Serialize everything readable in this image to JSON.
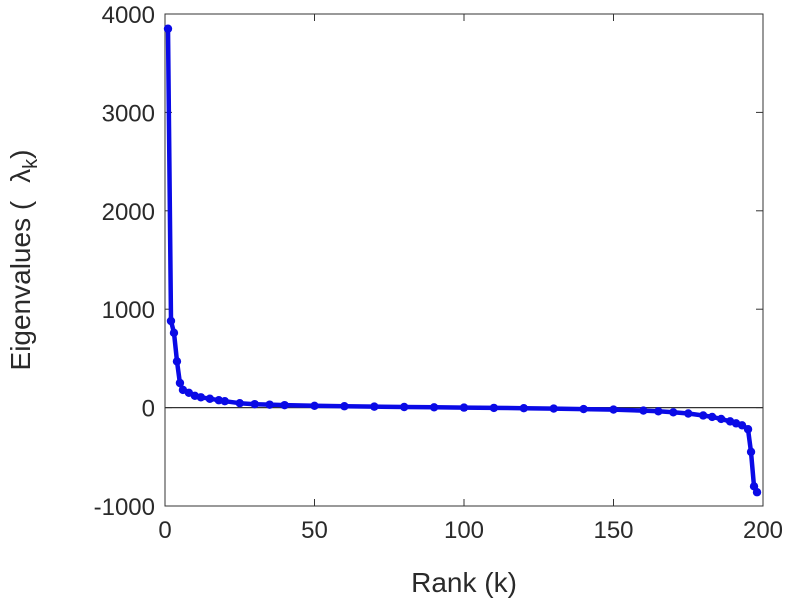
{
  "chart_data": {
    "type": "line",
    "title": "",
    "xlabel": "Rank (k)",
    "ylabel": {
      "text": "Eigenvalues (",
      "symbol": "λ",
      "subscript": "k",
      "close": ")"
    },
    "xlim": [
      0,
      200
    ],
    "ylim": [
      -1000,
      4000
    ],
    "xticks": [
      "0",
      "50",
      "100",
      "150",
      "200"
    ],
    "yticks": [
      "-1000",
      "0",
      "1000",
      "2000",
      "3000",
      "4000"
    ],
    "zero_line": true,
    "grid": false,
    "series": [
      {
        "color": "#0a0ae6",
        "x": [
          1,
          2,
          3,
          4,
          5,
          6,
          8,
          10,
          12,
          15,
          18,
          20,
          25,
          30,
          35,
          40,
          50,
          60,
          70,
          80,
          90,
          100,
          110,
          120,
          130,
          140,
          150,
          160,
          165,
          170,
          175,
          180,
          183,
          186,
          189,
          191,
          193,
          195,
          196,
          197,
          198
        ],
        "y": [
          3850,
          880,
          760,
          470,
          250,
          180,
          150,
          120,
          105,
          90,
          75,
          65,
          45,
          35,
          30,
          25,
          18,
          14,
          10,
          6,
          3,
          0,
          -3,
          -6,
          -10,
          -15,
          -20,
          -30,
          -38,
          -48,
          -60,
          -80,
          -95,
          -115,
          -140,
          -160,
          -180,
          -220,
          -450,
          -800,
          -860
        ]
      }
    ]
  }
}
